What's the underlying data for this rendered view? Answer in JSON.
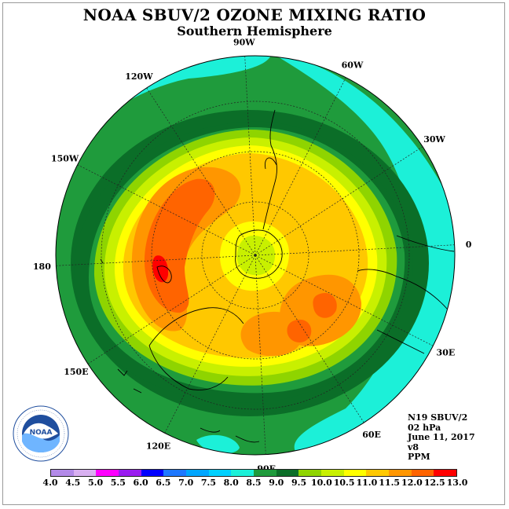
{
  "title": "NOAA SBUV/2 OZONE MIXING RATIO",
  "subtitle": "Southern Hemisphere",
  "longitude_labels": [
    "0",
    "30E",
    "60E",
    "90E",
    "120E",
    "150E",
    "180",
    "150W",
    "120W",
    "90W",
    "60W",
    "30W"
  ],
  "info": {
    "satellite": "N19 SBUV/2",
    "pressure": "02 hPa",
    "date": "June 11, 2017",
    "version": "v8",
    "units": "PPM"
  },
  "logo_text": "NOAA",
  "colorbar": {
    "ticks": [
      "4.0",
      "4.5",
      "5.0",
      "5.5",
      "6.0",
      "6.5",
      "7.0",
      "7.5",
      "8.0",
      "8.5",
      "9.0",
      "9.5",
      "10.0",
      "10.5",
      "11.0",
      "11.5",
      "12.0",
      "12.5",
      "13.0"
    ],
    "colors": [
      "#b38ae8",
      "#d8b0f0",
      "#ff00ff",
      "#9a1cf0",
      "#0000ff",
      "#1e78ff",
      "#00a6ff",
      "#00d0ff",
      "#1cf0d8",
      "#1f9b3c",
      "#0b6e28",
      "#8fd400",
      "#c8f000",
      "#ffff00",
      "#ffc800",
      "#ff9600",
      "#ff6400",
      "#ff0000",
      "#a0522d"
    ]
  }
}
